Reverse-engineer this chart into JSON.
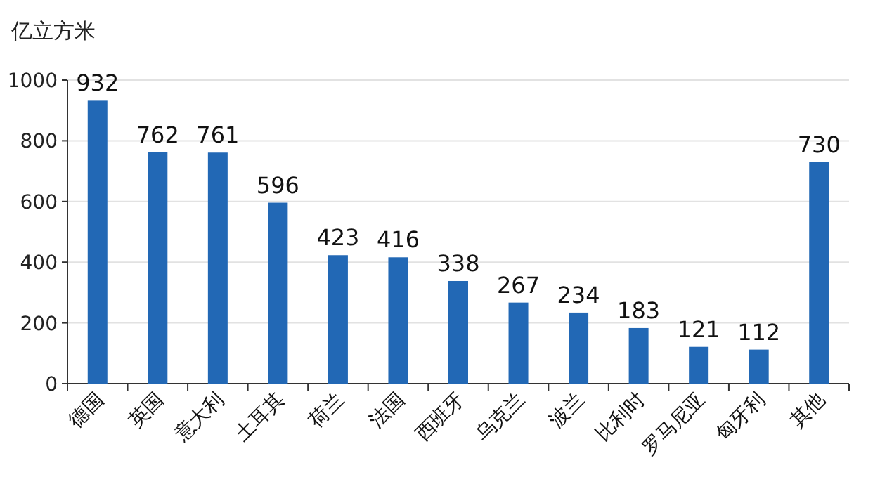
{
  "chart_data": {
    "type": "bar",
    "ylabel": "亿立方米",
    "categories": [
      "德国",
      "英国",
      "意大利",
      "土耳其",
      "荷兰",
      "法国",
      "西班牙",
      "乌克兰",
      "波兰",
      "比利时",
      "罗马尼亚",
      "匈牙利",
      "其他"
    ],
    "values": [
      932,
      762,
      761,
      596,
      423,
      416,
      338,
      267,
      234,
      183,
      121,
      112,
      730
    ],
    "color": "#2268b5",
    "ylim": [
      0,
      1000
    ],
    "yticks": [
      0,
      200,
      400,
      600,
      800,
      1000
    ],
    "grid": "y",
    "data_labels": true
  }
}
